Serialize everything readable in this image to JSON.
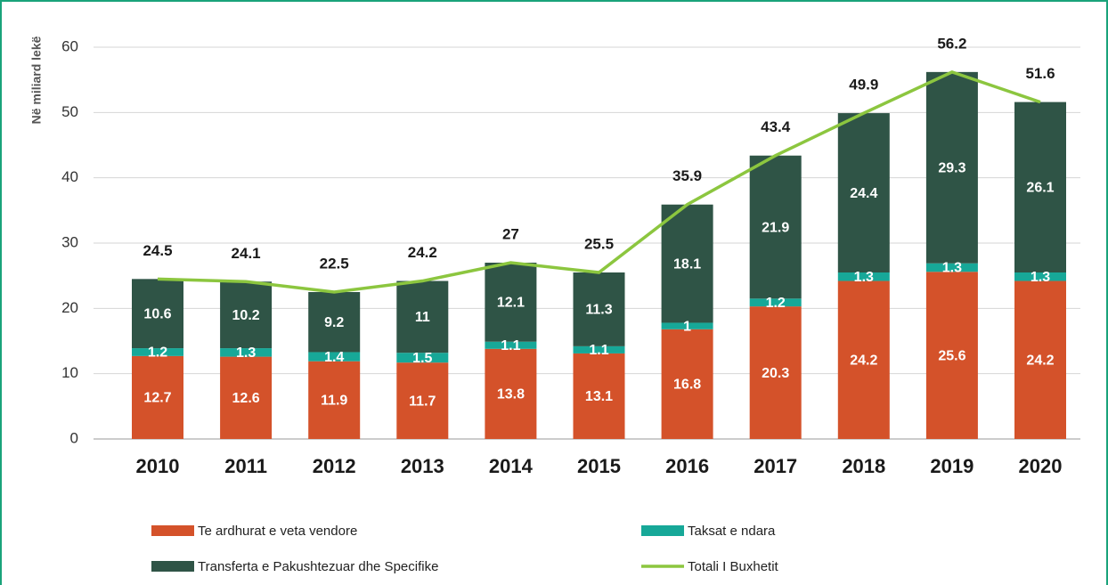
{
  "chart_data": {
    "type": "bar",
    "stacked": true,
    "y_label": "Në miliard lekë",
    "categories": [
      "2010",
      "2011",
      "2012",
      "2013",
      "2014",
      "2015",
      "2016",
      "2017",
      "2018",
      "2019",
      "2020"
    ],
    "series": [
      {
        "name": "Te ardhurat e veta vendore",
        "color": "#d4522a",
        "values": [
          12.7,
          12.6,
          11.9,
          11.7,
          13.8,
          13.1,
          16.8,
          20.3,
          24.2,
          25.6,
          24.2
        ]
      },
      {
        "name": "Taksat e ndara",
        "color": "#17a898",
        "values": [
          1.2,
          1.3,
          1.4,
          1.5,
          1.1,
          1.1,
          1,
          1.2,
          1.3,
          1.3,
          1.3
        ]
      },
      {
        "name": "Transferta e Pakushtezuar dhe Specifike",
        "color": "#2f5446",
        "values": [
          10.6,
          10.2,
          9.2,
          11,
          12.1,
          11.3,
          18.1,
          21.9,
          24.4,
          29.3,
          26.1
        ]
      },
      {
        "name": "Totali I Buxhetit",
        "type": "line",
        "color": "#8cc63f",
        "values": [
          24.5,
          24.1,
          22.5,
          24.2,
          27,
          25.5,
          35.9,
          43.4,
          49.9,
          56.2,
          51.6
        ]
      }
    ],
    "ylim": [
      0,
      60
    ],
    "yticks": [
      0,
      10,
      20,
      30,
      40,
      50,
      60
    ],
    "grid": true,
    "legend": "bottom"
  }
}
